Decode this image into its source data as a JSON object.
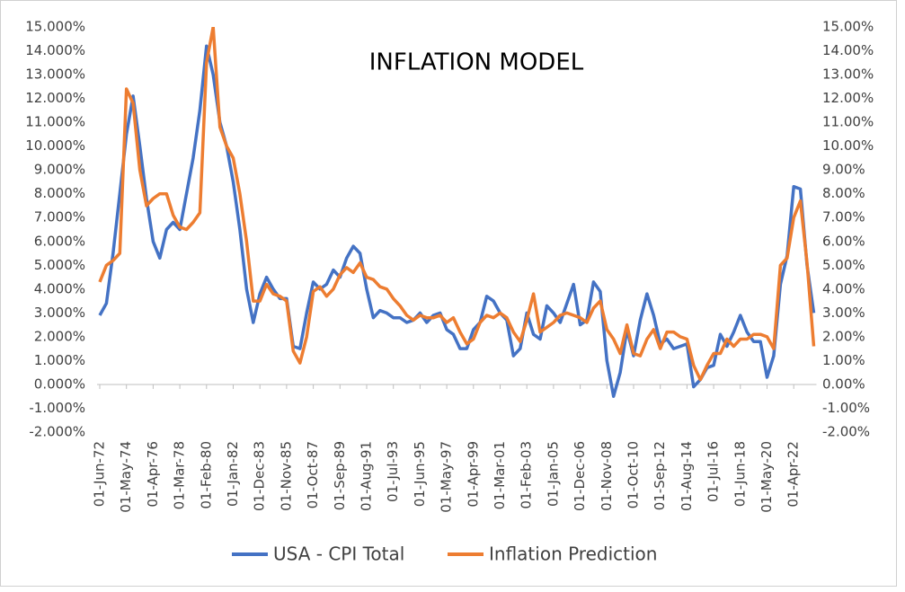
{
  "chart_data": {
    "type": "line",
    "title": "INFLATION MODEL",
    "categories": [
      "01-Jun-72",
      null,
      null,
      null,
      "01-May-74",
      null,
      null,
      null,
      "01-Apr-76",
      null,
      null,
      null,
      "01-Mar-78",
      null,
      null,
      null,
      "01-Feb-80",
      null,
      null,
      null,
      "01-Jan-82",
      null,
      null,
      null,
      "01-Dec-83",
      null,
      null,
      null,
      "01-Nov-85",
      null,
      null,
      null,
      "01-Oct-87",
      null,
      null,
      null,
      "01-Sep-89",
      null,
      null,
      null,
      "01-Aug-91",
      null,
      null,
      null,
      "01-Jul-93",
      null,
      null,
      null,
      "01-Jun-95",
      null,
      null,
      null,
      "01-May-97",
      null,
      null,
      null,
      "01-Apr-99",
      null,
      null,
      null,
      "01-Mar-01",
      null,
      null,
      null,
      "01-Feb-03",
      null,
      null,
      null,
      "01-Jan-05",
      null,
      null,
      null,
      "01-Dec-06",
      null,
      null,
      null,
      "01-Nov-08",
      null,
      null,
      null,
      "01-Oct-10",
      null,
      null,
      null,
      "01-Sep-12",
      null,
      null,
      null,
      "01-Aug-14",
      null,
      null,
      null,
      "01-Jul-16",
      null,
      null,
      null,
      "01-Jun-18",
      null,
      null,
      null,
      "01-May-20",
      null,
      null,
      null,
      "01-Apr-22",
      null,
      null,
      null
    ],
    "series": [
      {
        "name": "USA - CPI Total",
        "color": "#4472c4",
        "values": [
          2.9,
          3.4,
          5.5,
          8.0,
          10.5,
          12.1,
          10.0,
          7.8,
          6.0,
          5.3,
          6.5,
          6.8,
          6.5,
          8.0,
          9.5,
          11.5,
          14.2,
          13.0,
          11.0,
          10.0,
          8.5,
          6.5,
          4.0,
          2.6,
          3.8,
          4.5,
          4.0,
          3.6,
          3.6,
          1.6,
          1.5,
          3.0,
          4.3,
          4.0,
          4.2,
          4.8,
          4.5,
          5.3,
          5.8,
          5.5,
          4.0,
          2.8,
          3.1,
          3.0,
          2.8,
          2.8,
          2.6,
          2.7,
          3.0,
          2.6,
          2.9,
          3.0,
          2.3,
          2.1,
          1.5,
          1.5,
          2.3,
          2.6,
          3.7,
          3.5,
          3.0,
          2.7,
          1.2,
          1.5,
          3.0,
          2.1,
          1.9,
          3.3,
          3.0,
          2.6,
          3.4,
          4.2,
          2.5,
          2.7,
          4.3,
          3.9,
          1.0,
          -0.5,
          0.5,
          2.3,
          1.2,
          2.7,
          3.8,
          2.9,
          1.7,
          1.9,
          1.5,
          1.6,
          1.7,
          -0.1,
          0.2,
          0.7,
          0.8,
          2.1,
          1.6,
          2.2,
          2.9,
          2.2,
          1.8,
          1.8,
          0.3,
          1.2,
          4.2,
          5.4,
          8.3,
          8.2,
          5.0,
          3.0
        ]
      },
      {
        "name": "Inflation Prediction",
        "color": "#ed7d31",
        "axis": "y2",
        "values": [
          4.3,
          5.0,
          5.2,
          5.5,
          12.4,
          11.8,
          9.0,
          7.5,
          7.8,
          8.0,
          8.0,
          7.1,
          6.6,
          6.5,
          6.8,
          7.2,
          13.5,
          15.0,
          10.8,
          10.0,
          9.5,
          8.0,
          6.0,
          3.5,
          3.5,
          4.2,
          3.8,
          3.7,
          3.5,
          1.4,
          0.9,
          2.0,
          3.9,
          4.1,
          3.7,
          4.0,
          4.6,
          4.9,
          4.7,
          5.1,
          4.5,
          4.4,
          4.1,
          4.0,
          3.6,
          3.3,
          2.9,
          2.7,
          2.9,
          2.8,
          2.8,
          2.9,
          2.6,
          2.8,
          2.2,
          1.7,
          1.9,
          2.6,
          2.9,
          2.8,
          3.0,
          2.8,
          2.2,
          1.8,
          2.7,
          3.8,
          2.2,
          2.4,
          2.6,
          2.9,
          3.0,
          2.9,
          2.8,
          2.6,
          3.2,
          3.5,
          2.3,
          1.9,
          1.3,
          2.5,
          1.3,
          1.2,
          1.9,
          2.3,
          1.5,
          2.2,
          2.2,
          2.0,
          1.9,
          0.8,
          0.2,
          0.8,
          1.3,
          1.3,
          1.9,
          1.6,
          1.9,
          1.9,
          2.1,
          2.1,
          2.0,
          1.5,
          5.0,
          5.3,
          7.0,
          7.7,
          5.1,
          1.6
        ]
      }
    ],
    "ylim": [
      -2,
      15
    ],
    "yticks": [
      {
        "value": -2,
        "label": "-2.000%"
      },
      {
        "value": -1,
        "label": "-1.000%"
      },
      {
        "value": 0,
        "label": "0.000%"
      },
      {
        "value": 1,
        "label": "1.000%"
      },
      {
        "value": 2,
        "label": "2.000%"
      },
      {
        "value": 3,
        "label": "3.000%"
      },
      {
        "value": 4,
        "label": "4.000%"
      },
      {
        "value": 5,
        "label": "5.000%"
      },
      {
        "value": 6,
        "label": "6.000%"
      },
      {
        "value": 7,
        "label": "7.000%"
      },
      {
        "value": 8,
        "label": "8.000%"
      },
      {
        "value": 9,
        "label": "9.000%"
      },
      {
        "value": 10,
        "label": "10.000%"
      },
      {
        "value": 11,
        "label": "11.000%"
      },
      {
        "value": 12,
        "label": "12.000%"
      },
      {
        "value": 13,
        "label": "13.000%"
      },
      {
        "value": 14,
        "label": "14.000%"
      },
      {
        "value": 15,
        "label": "15.000%"
      }
    ],
    "y2lim": [
      -2,
      15
    ],
    "y2ticks": [
      {
        "value": -2,
        "label": "-2.00%"
      },
      {
        "value": -1,
        "label": "-1.00%"
      },
      {
        "value": 0,
        "label": "0.00%"
      },
      {
        "value": 1,
        "label": "1.00%"
      },
      {
        "value": 2,
        "label": "2.00%"
      },
      {
        "value": 3,
        "label": "3.00%"
      },
      {
        "value": 4,
        "label": "4.00%"
      },
      {
        "value": 5,
        "label": "5.00%"
      },
      {
        "value": 6,
        "label": "6.00%"
      },
      {
        "value": 7,
        "label": "7.00%"
      },
      {
        "value": 8,
        "label": "8.00%"
      },
      {
        "value": 9,
        "label": "9.00%"
      },
      {
        "value": 10,
        "label": "10.00%"
      },
      {
        "value": 11,
        "label": "11.00%"
      },
      {
        "value": 12,
        "label": "12.00%"
      },
      {
        "value": 13,
        "label": "13.00%"
      },
      {
        "value": 14,
        "label": "14.00%"
      },
      {
        "value": 15,
        "label": "15.00%"
      }
    ],
    "grid": false
  }
}
